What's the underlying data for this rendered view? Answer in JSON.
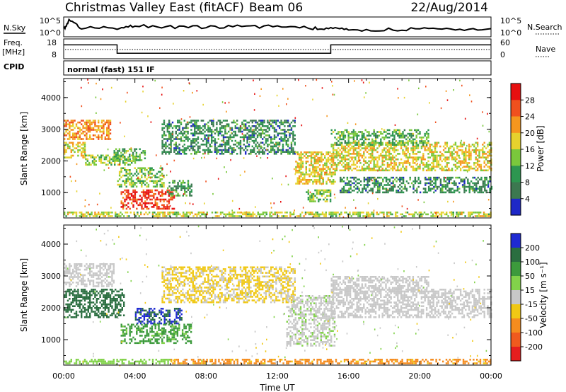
{
  "header": {
    "site": "Christmas Valley East (fitACF)",
    "beam": "Beam 06",
    "date": "22/Aug/2014"
  },
  "noise_panel": {
    "left_label": "N.Sky",
    "left_ticks": [
      "10^5",
      "10^0"
    ],
    "right_ticks": [
      "10^5",
      "10^0"
    ],
    "right_label": "N.Search"
  },
  "freq_panel": {
    "left_label_1": "Freq.",
    "left_label_2": "[MHz]",
    "left_ticks": [
      "18",
      "8"
    ],
    "right_ticks": [
      "60",
      "0"
    ],
    "right_label": "Nave"
  },
  "cpid_panel": {
    "label": "CPID",
    "mode": "normal (fast) 151 IF"
  },
  "power_colorbar": {
    "title": "Power [dB]",
    "ticks": [
      "28",
      "24",
      "20",
      "16",
      "12",
      "8",
      "4"
    ],
    "colors": [
      "#e61010",
      "#f0501e",
      "#f5961e",
      "#e6d22d",
      "#7ac83c",
      "#2d9650",
      "#3c7850",
      "#1e28c8"
    ]
  },
  "velocity_colorbar": {
    "title": "Velocity [m s⁻¹]",
    "ticks": [
      "200",
      "100",
      "50",
      "15",
      "-15",
      "-50",
      "-100",
      "-200"
    ],
    "colors": [
      "#1e2ad2",
      "#2a6e40",
      "#3c9a3c",
      "#82d24a",
      "#c8c8c8",
      "#f0c814",
      "#f58c1e",
      "#f05a1e",
      "#e61e1e"
    ]
  },
  "chart_data": [
    {
      "type": "heatmap",
      "panel": "power",
      "ylabel": "Slant Range [km]",
      "ylim": [
        200,
        4600
      ],
      "y_ticks": [
        1000,
        2000,
        3000,
        4000
      ],
      "xlim": [
        0,
        24
      ],
      "x_ticks": [
        0,
        4,
        8,
        12,
        16,
        20,
        24
      ],
      "regions": [
        {
          "t0": 0.0,
          "t1": 2.6,
          "r0": 2700,
          "r1": 3300,
          "v": 22
        },
        {
          "t0": 0.0,
          "t1": 1.2,
          "r0": 2100,
          "r1": 2600,
          "v": 18
        },
        {
          "t0": 1.2,
          "t1": 4.0,
          "r0": 1900,
          "r1": 2200,
          "v": 14
        },
        {
          "t0": 2.8,
          "t1": 4.6,
          "r0": 2000,
          "r1": 2400,
          "v": 12
        },
        {
          "t0": 3.0,
          "t1": 5.6,
          "r0": 1200,
          "r1": 1800,
          "v": 14
        },
        {
          "t0": 3.2,
          "t1": 6.2,
          "r0": 500,
          "r1": 1100,
          "v": 28
        },
        {
          "t0": 5.8,
          "t1": 7.2,
          "r0": 900,
          "r1": 1400,
          "v": 10
        },
        {
          "t0": 5.5,
          "t1": 13.0,
          "r0": 2200,
          "r1": 3300,
          "v": 8
        },
        {
          "t0": 13.0,
          "t1": 15.2,
          "r0": 1300,
          "r1": 2300,
          "v": 18
        },
        {
          "t0": 13.6,
          "t1": 15.0,
          "r0": 700,
          "r1": 1100,
          "v": 14
        },
        {
          "t0": 15.0,
          "t1": 24.0,
          "r0": 1700,
          "r1": 2600,
          "v": 18
        },
        {
          "t0": 15.0,
          "t1": 20.5,
          "r0": 2500,
          "r1": 3000,
          "v": 12
        },
        {
          "t0": 15.5,
          "t1": 24.0,
          "r0": 1000,
          "r1": 1500,
          "v": 8
        },
        {
          "t0": 0.0,
          "t1": 24.0,
          "r0": 250,
          "r1": 400,
          "v": 16
        }
      ]
    },
    {
      "type": "heatmap",
      "panel": "velocity",
      "ylabel": "Slant Range [km]",
      "xlabel": "Time UT",
      "ylim": [
        200,
        4600
      ],
      "y_ticks": [
        1000,
        2000,
        3000,
        4000
      ],
      "xlim": [
        0,
        24
      ],
      "x_ticks": [
        0,
        4,
        8,
        12,
        16,
        20,
        24
      ],
      "x_tick_labels": [
        "00:00",
        "04:00",
        "08:00",
        "12:00",
        "16:00",
        "20:00",
        "00:00"
      ],
      "regions": [
        {
          "t0": 0.0,
          "t1": 2.8,
          "r0": 2700,
          "r1": 3400,
          "v": 0
        },
        {
          "t0": 0.0,
          "t1": 3.4,
          "r0": 1700,
          "r1": 2600,
          "v": 150
        },
        {
          "t0": 4.0,
          "t1": 6.6,
          "r0": 1500,
          "r1": 2000,
          "v": 200
        },
        {
          "t0": 3.2,
          "t1": 7.2,
          "r0": 900,
          "r1": 1500,
          "v": 60
        },
        {
          "t0": 5.5,
          "t1": 13.0,
          "r0": 2200,
          "r1": 3300,
          "v": -20
        },
        {
          "t0": 12.5,
          "t1": 15.2,
          "r0": 800,
          "r1": 2400,
          "v": 5
        },
        {
          "t0": 15.0,
          "t1": 24.0,
          "r0": 1700,
          "r1": 2600,
          "v": 0
        },
        {
          "t0": 15.0,
          "t1": 20.5,
          "r0": 2500,
          "r1": 3000,
          "v": 0
        },
        {
          "t0": 0.0,
          "t1": 6.0,
          "r0": 250,
          "r1": 400,
          "v": 30
        },
        {
          "t0": 6.0,
          "t1": 24.0,
          "r0": 250,
          "r1": 400,
          "v": -60
        }
      ]
    },
    {
      "type": "line",
      "panel": "noise",
      "x": [
        0,
        0.3,
        1,
        3,
        4,
        6,
        8,
        10,
        12,
        14,
        15,
        16,
        18,
        20,
        22,
        24
      ],
      "series": [
        {
          "values": [
            2.2,
            3.8,
            2.4,
            2.4,
            2.9,
            2.6,
            2.6,
            2.7,
            2.7,
            2.4,
            2.3,
            2.1,
            2.1,
            2.2,
            2.2,
            2.3
          ]
        }
      ]
    },
    {
      "type": "line",
      "panel": "frequency",
      "ylim": [
        8,
        18
      ],
      "x": [
        0,
        3,
        3,
        15,
        15,
        24
      ],
      "series": [
        {
          "values": [
            15,
            15,
            10.8,
            10.8,
            15,
            15
          ]
        }
      ]
    }
  ]
}
